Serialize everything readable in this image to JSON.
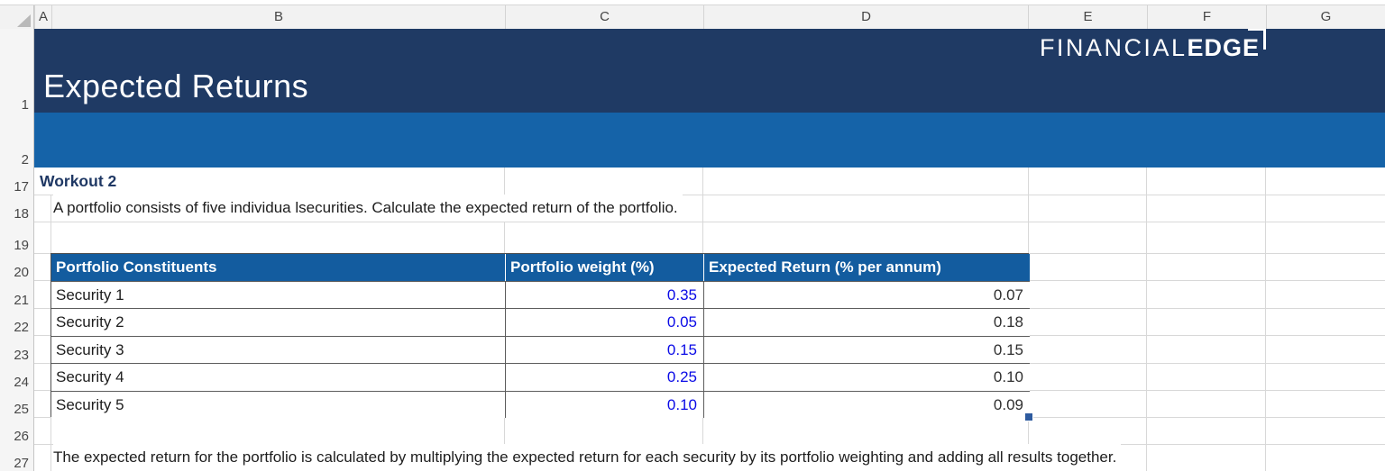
{
  "window": {
    "column_headers": [
      "A",
      "B",
      "C",
      "D",
      "E",
      "F",
      "G"
    ],
    "row_numbers": [
      "1",
      "2",
      "17",
      "18",
      "19",
      "20",
      "21",
      "22",
      "23",
      "24",
      "25",
      "26",
      "27"
    ]
  },
  "banner": {
    "title": "Expected Returns",
    "logo": {
      "thin": "FINANCIAL",
      "bold": "EDGE"
    }
  },
  "worksheet": {
    "workout_label": "Workout 2",
    "instruction": "A portfolio consists of five individua lsecurities. Calculate the expected return of the portfolio.",
    "summary": "The expected return for the portfolio is calculated by multiplying the expected return for each security by its portfolio weighting and adding all results together."
  },
  "table": {
    "columns": [
      "Portfolio Constituents",
      "Portfolio weight (%)",
      "Expected Return (% per annum)"
    ],
    "rows": [
      {
        "constituent": "Security 1",
        "weight": "0.35",
        "expected_return": "0.07"
      },
      {
        "constituent": "Security 2",
        "weight": "0.05",
        "expected_return": "0.18"
      },
      {
        "constituent": "Security 3",
        "weight": "0.15",
        "expected_return": "0.15"
      },
      {
        "constituent": "Security 4",
        "weight": "0.25",
        "expected_return": "0.10"
      },
      {
        "constituent": "Security 5",
        "weight": "0.10",
        "expected_return": "0.09"
      }
    ]
  },
  "colors": {
    "banner_navy": "#1f3a64",
    "band_blue": "#1563a8",
    "table_header_blue": "#135c9f",
    "input_value_blue": "#0a0ae6",
    "workout_navy": "#1f3864"
  }
}
